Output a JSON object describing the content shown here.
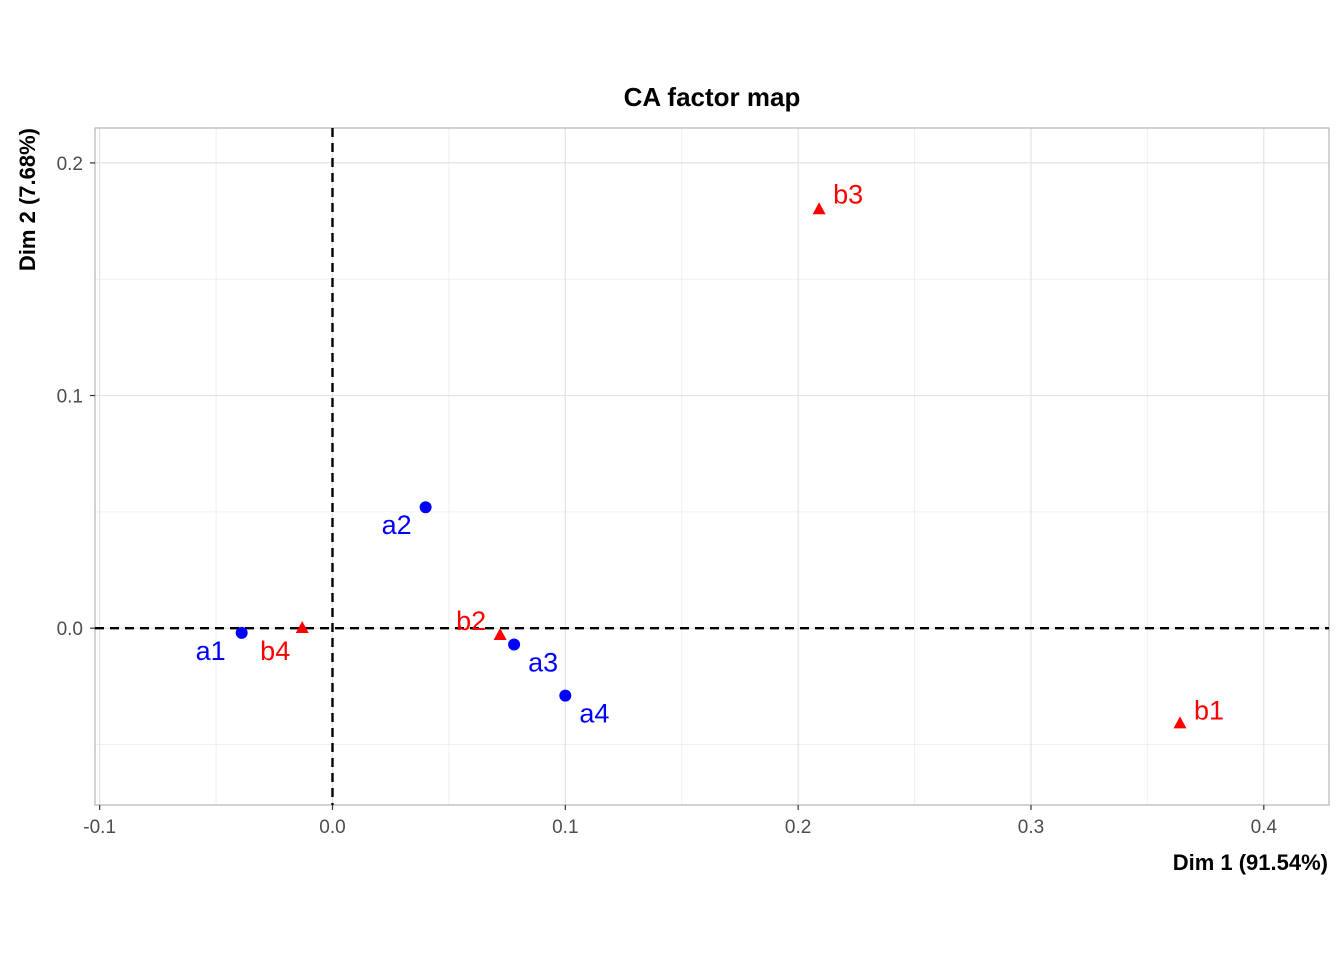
{
  "chart_data": {
    "type": "scatter",
    "title": "CA factor map",
    "xlabel": "Dim 1 (91.54%)",
    "ylabel": "Dim 2 (7.68%)",
    "xlim": [
      -0.102,
      0.428
    ],
    "ylim": [
      -0.076,
      0.215
    ],
    "x_ticks": [
      -0.1,
      0.0,
      0.1,
      0.2,
      0.3,
      0.4
    ],
    "x_tick_labels": [
      "-0.1",
      "0.0",
      "0.1",
      "0.2",
      "0.3",
      "0.4"
    ],
    "y_ticks": [
      0.0,
      0.1,
      0.2
    ],
    "y_tick_labels": [
      "0.0",
      "0.1",
      "0.2"
    ],
    "grid": true,
    "reference_lines": {
      "x": 0,
      "y": 0,
      "style": "dashed"
    },
    "series": [
      {
        "kind": "row",
        "color": "#0000ff",
        "marker": "circle",
        "points": [
          {
            "label": "a1",
            "x": -0.039,
            "y": -0.002
          },
          {
            "label": "a2",
            "x": 0.04,
            "y": 0.052
          },
          {
            "label": "a3",
            "x": 0.078,
            "y": -0.007
          },
          {
            "label": "a4",
            "x": 0.1,
            "y": -0.029
          }
        ]
      },
      {
        "kind": "column",
        "color": "#ff0000",
        "marker": "triangle",
        "points": [
          {
            "label": "b1",
            "x": 0.364,
            "y": -0.041
          },
          {
            "label": "b2",
            "x": 0.072,
            "y": -0.003
          },
          {
            "label": "b3",
            "x": 0.209,
            "y": 0.18
          },
          {
            "label": "b4",
            "x": -0.013,
            "y": 0.0
          }
        ]
      }
    ]
  }
}
